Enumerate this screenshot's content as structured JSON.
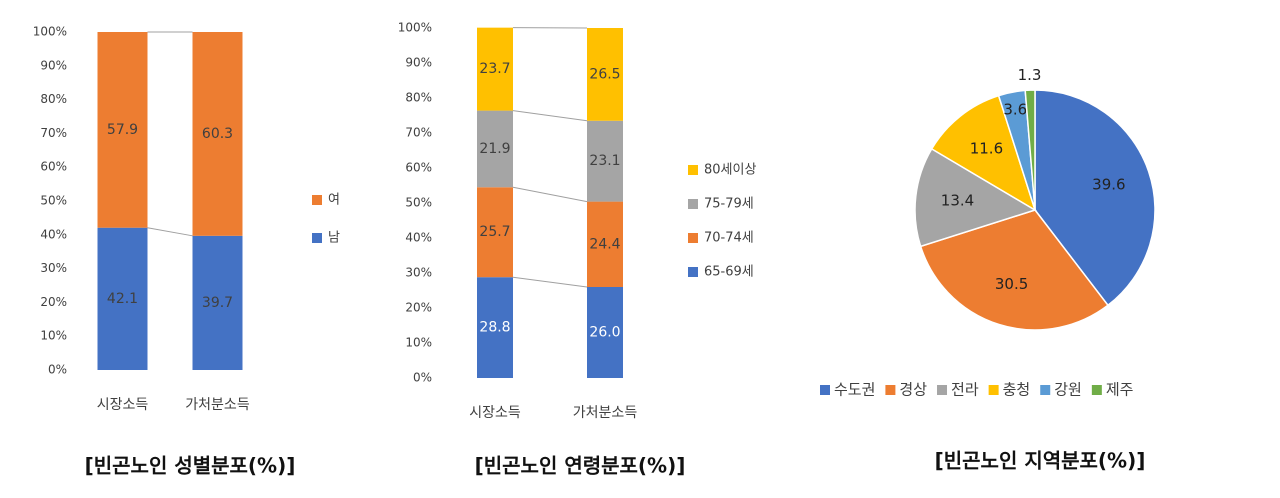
{
  "chart_data": [
    {
      "type": "stacked_bar",
      "title": "[빈곤노인 성별분포(%)]",
      "categories": [
        "시장소득",
        "가처분소득"
      ],
      "series": [
        {
          "name": "남",
          "color": "#4472c4",
          "values": [
            42.1,
            39.7
          ]
        },
        {
          "name": "여",
          "color": "#ed7d31",
          "values": [
            57.9,
            60.3
          ]
        }
      ],
      "ylim": [
        0,
        100
      ],
      "yticks": [
        {
          "value": 0,
          "label": "0%"
        },
        {
          "value": 10,
          "label": "10%"
        },
        {
          "value": 20,
          "label": "20%"
        },
        {
          "value": 30,
          "label": "30%"
        },
        {
          "value": 40,
          "label": "40%"
        },
        {
          "value": 50,
          "label": "50%"
        },
        {
          "value": 60,
          "label": "60%"
        },
        {
          "value": 70,
          "label": "70%"
        },
        {
          "value": 80,
          "label": "80%"
        },
        {
          "value": 90,
          "label": "90%"
        },
        {
          "value": 100,
          "label": "100%"
        }
      ],
      "legend": "right"
    },
    {
      "type": "stacked_bar",
      "title": "[빈곤노인 연령분포(%)]",
      "categories": [
        "시장소득",
        "가처분소득"
      ],
      "series": [
        {
          "name": "65-69세",
          "color": "#4472c4",
          "values": [
            28.8,
            26.0
          ],
          "value_labels": [
            "28.8",
            "26.0"
          ]
        },
        {
          "name": "70-74세",
          "color": "#ed7d31",
          "values": [
            25.7,
            24.4
          ]
        },
        {
          "name": "75-79세",
          "color": "#a5a5a5",
          "values": [
            21.9,
            23.1
          ]
        },
        {
          "name": "80세이상",
          "color": "#ffc000",
          "values": [
            23.7,
            26.5
          ]
        }
      ],
      "ylim": [
        0,
        100
      ],
      "yticks": [
        {
          "value": 0,
          "label": "0%"
        },
        {
          "value": 10,
          "label": "10%"
        },
        {
          "value": 20,
          "label": "20%"
        },
        {
          "value": 30,
          "label": "30%"
        },
        {
          "value": 40,
          "label": "40%"
        },
        {
          "value": 50,
          "label": "50%"
        },
        {
          "value": 60,
          "label": "60%"
        },
        {
          "value": 70,
          "label": "70%"
        },
        {
          "value": 80,
          "label": "80%"
        },
        {
          "value": 90,
          "label": "90%"
        },
        {
          "value": 100,
          "label": "100%"
        }
      ],
      "legend": "right"
    },
    {
      "type": "pie",
      "title": "[빈곤노인 지역분포(%)]",
      "categories": [
        "수도권",
        "경상",
        "전라",
        "충청",
        "강원",
        "제주"
      ],
      "values": [
        39.6,
        30.5,
        13.4,
        11.6,
        3.6,
        1.3
      ],
      "colors": [
        "#4472c4",
        "#ed7d31",
        "#a5a5a5",
        "#ffc000",
        "#5b9bd5",
        "#70ad47"
      ],
      "legend": "bottom"
    }
  ]
}
